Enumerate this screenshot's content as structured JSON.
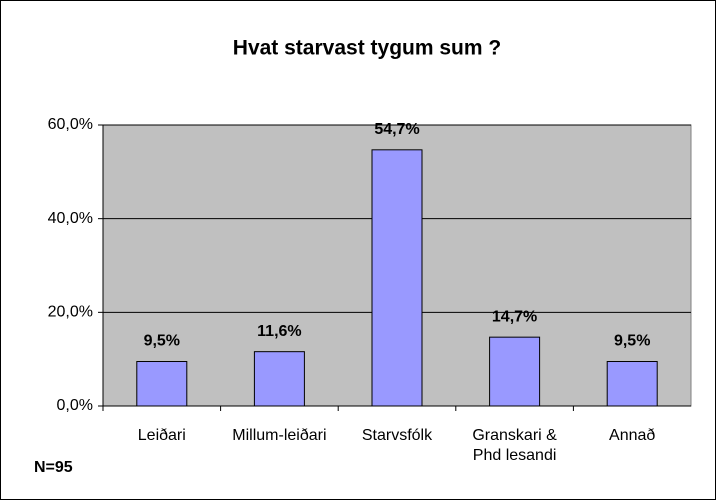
{
  "chart_data": {
    "type": "bar",
    "title": "Hvat starvast tygum sum ?",
    "categories": [
      "Leiðari",
      "Millum-leiðari",
      "Starvsfólk",
      "Granskari & Phd lesandi",
      "Annað"
    ],
    "values": [
      9.5,
      11.6,
      54.7,
      14.7,
      9.5
    ],
    "value_labels": [
      "9,5%",
      "11,6%",
      "54,7%",
      "14,7%",
      "9,5%"
    ],
    "color": "#9999ff",
    "ylim": [
      0,
      60
    ],
    "yticks": [
      {
        "value": 0,
        "label": "0,0%"
      },
      {
        "value": 20,
        "label": "20,0%"
      },
      {
        "value": 40,
        "label": "40,0%"
      },
      {
        "value": 60,
        "label": "60,0%"
      }
    ],
    "grid": true,
    "annotation": "N=95"
  }
}
